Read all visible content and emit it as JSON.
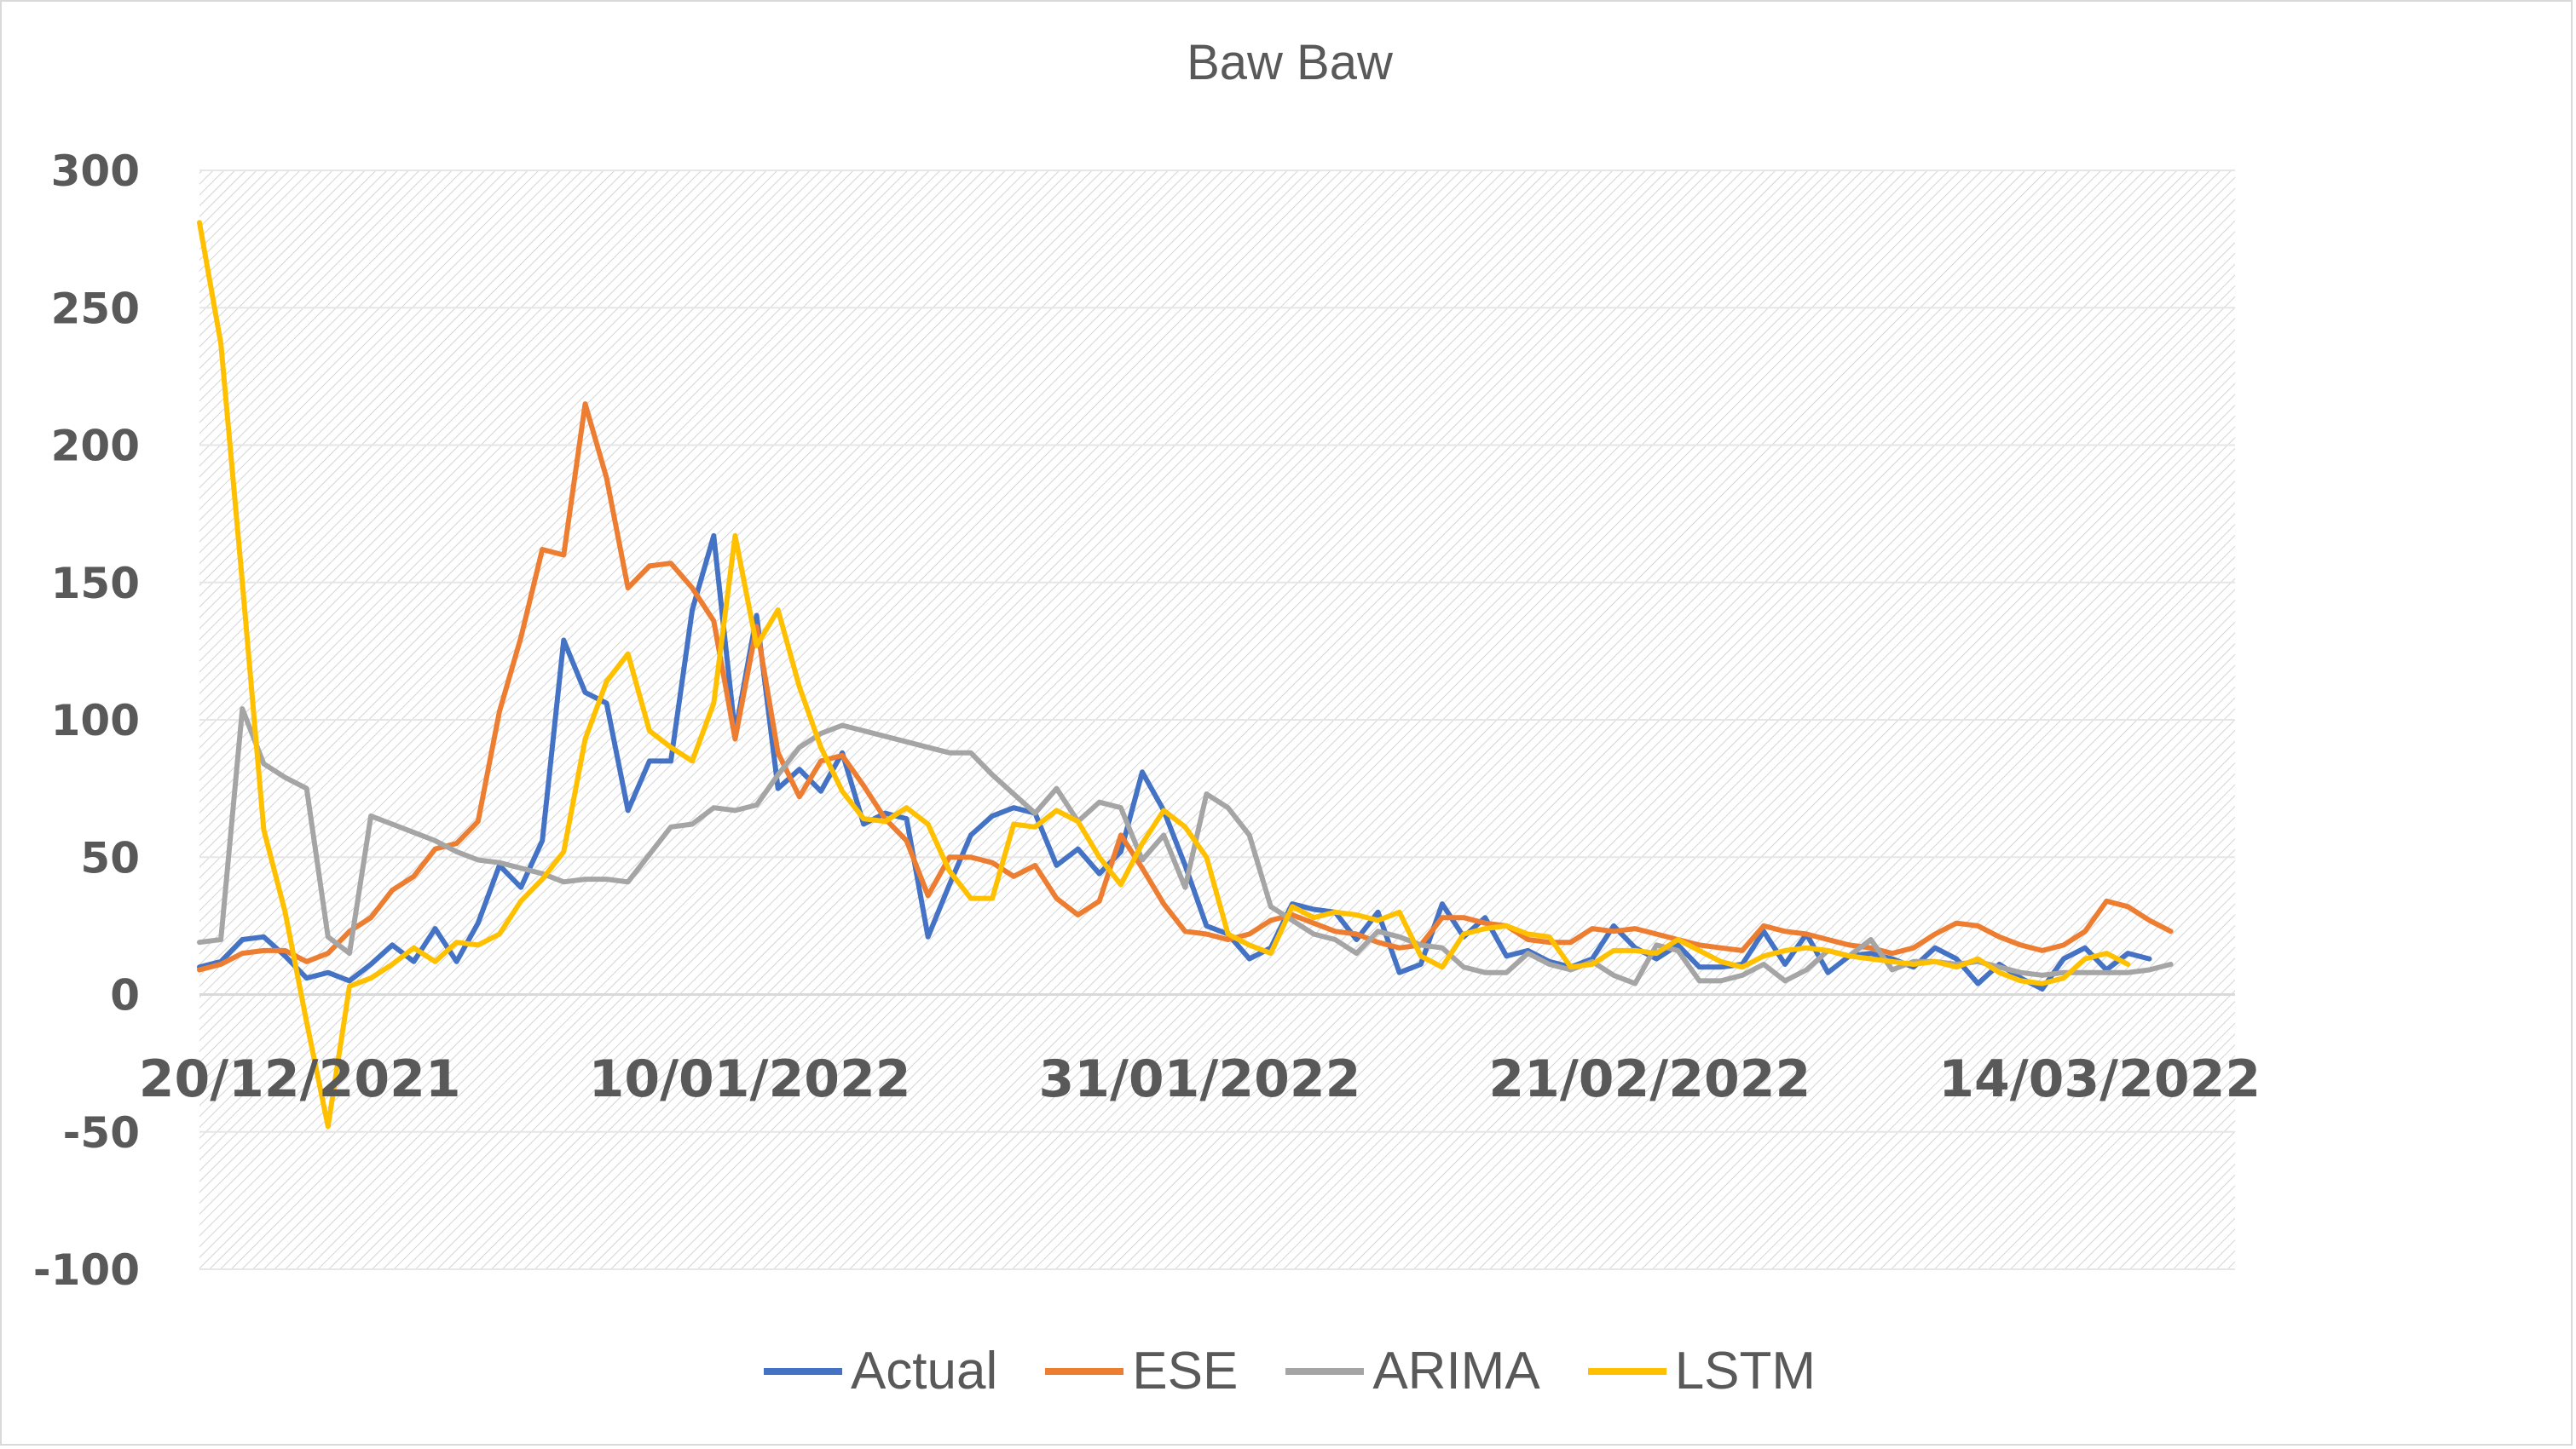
{
  "chart_data": {
    "type": "line",
    "title": "Baw Baw",
    "xlabel": "",
    "ylabel": "",
    "ylim": [
      -100,
      300
    ],
    "yticks": [
      300,
      250,
      200,
      150,
      100,
      50,
      0,
      -50,
      -100
    ],
    "xtick_labels": [
      "20/12/2021",
      "10/01/2022",
      "31/01/2022",
      "21/02/2022",
      "14/03/2022"
    ],
    "x_start": "2021-12-15",
    "x_end": "2022-03-20",
    "grid": true,
    "legend_position": "bottom",
    "series": [
      {
        "name": "Actual",
        "color": "#4472C4",
        "values": [
          10,
          12,
          20,
          21,
          14,
          6,
          8,
          5,
          11,
          18,
          12,
          24,
          12,
          26,
          47,
          39,
          56,
          129,
          110,
          106,
          67,
          85,
          85,
          140,
          167,
          95,
          138,
          75,
          82,
          74,
          88,
          62,
          66,
          64,
          21,
          40,
          58,
          65,
          68,
          66,
          47,
          53,
          44,
          52,
          81,
          67,
          47,
          25,
          22,
          13,
          17,
          33,
          31,
          30,
          20,
          30,
          8,
          11,
          33,
          21,
          28,
          14,
          16,
          12,
          10,
          13,
          25,
          17,
          13,
          18,
          10,
          10,
          11,
          23,
          11,
          22,
          8,
          14,
          15,
          13,
          10,
          17,
          13,
          4,
          11,
          6,
          2,
          13,
          17,
          9,
          15,
          13
        ]
      },
      {
        "name": "ESE",
        "color": "#ED7D31",
        "values": [
          9,
          11,
          15,
          16,
          16,
          12,
          15,
          23,
          28,
          38,
          43,
          53,
          55,
          63,
          103,
          130,
          162,
          160,
          215,
          188,
          148,
          156,
          157,
          148,
          136,
          93,
          134,
          88,
          72,
          85,
          87,
          76,
          64,
          56,
          36,
          50,
          50,
          48,
          43,
          47,
          35,
          29,
          34,
          58,
          46,
          33,
          23,
          22,
          20,
          22,
          27,
          29,
          26,
          23,
          22,
          19,
          17,
          18,
          28,
          28,
          26,
          25,
          20,
          19,
          19,
          24,
          23,
          24,
          22,
          20,
          18,
          17,
          16,
          25,
          23,
          22,
          20,
          18,
          17,
          15,
          17,
          22,
          26,
          25,
          21,
          18,
          16,
          18,
          23,
          34,
          32,
          27,
          23
        ]
      },
      {
        "name": "ARIMA",
        "color": "#A5A5A5",
        "values": [
          19,
          20,
          104,
          84,
          79,
          75,
          21,
          15,
          65,
          62,
          59,
          56,
          52,
          49,
          48,
          46,
          44,
          41,
          42,
          42,
          41,
          51,
          61,
          62,
          68,
          67,
          69,
          80,
          90,
          95,
          98,
          96,
          94,
          92,
          90,
          88,
          88,
          80,
          73,
          66,
          75,
          63,
          70,
          68,
          49,
          58,
          39,
          73,
          68,
          58,
          32,
          27,
          22,
          20,
          15,
          23,
          21,
          18,
          17,
          10,
          8,
          8,
          15,
          11,
          9,
          12,
          7,
          4,
          18,
          16,
          5,
          5,
          7,
          11,
          5,
          9,
          16,
          14,
          20,
          9,
          12,
          12,
          11,
          12,
          10,
          8,
          7,
          8,
          8,
          8,
          8,
          9,
          11
        ]
      },
      {
        "name": "LSTM",
        "color": "#FFC000",
        "values": [
          281,
          237,
          150,
          60,
          30,
          -10,
          -48,
          3,
          6,
          11,
          17,
          12,
          19,
          18,
          22,
          34,
          42,
          52,
          93,
          114,
          124,
          96,
          90,
          85,
          106,
          167,
          127,
          140,
          112,
          90,
          74,
          64,
          63,
          68,
          62,
          45,
          35,
          35,
          62,
          61,
          67,
          63,
          50,
          40,
          55,
          67,
          61,
          50,
          22,
          18,
          15,
          32,
          28,
          30,
          29,
          27,
          30,
          14,
          10,
          22,
          24,
          25,
          22,
          21,
          10,
          11,
          16,
          16,
          15,
          20,
          16,
          12,
          10,
          14,
          16,
          17,
          16,
          14,
          13,
          12,
          11,
          12,
          10,
          13,
          8,
          5,
          4,
          6,
          13,
          15,
          11
        ]
      }
    ]
  }
}
